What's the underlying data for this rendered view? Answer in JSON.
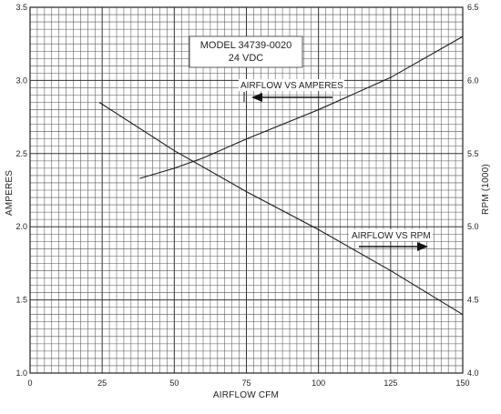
{
  "chart_data": {
    "type": "line",
    "title": "",
    "model_box": [
      "MODEL 34739-0020",
      "24   VDC"
    ],
    "xlabel": "AIRFLOW CFM",
    "ylabel_left": "AMPERES",
    "ylabel_right": "RPM (1000)",
    "x_range": [
      0,
      150
    ],
    "y_left_range": [
      1.0,
      3.5
    ],
    "y_right_range": [
      4.0,
      6.5
    ],
    "x_ticks": [
      "0",
      "25",
      "50",
      "75",
      "100",
      "125",
      "150"
    ],
    "y_left_ticks": [
      "1.0",
      "1.5",
      "2.0",
      "2.5",
      "3.0",
      "3.5"
    ],
    "y_right_ticks": [
      "4.0",
      "4.5",
      "5.0",
      "5.5",
      "6.0",
      "6.5"
    ],
    "grid": true,
    "series": [
      {
        "name": "AIRFLOW VS AMPERES",
        "axis": "left",
        "x": [
          38,
          50,
          60,
          75,
          100,
          125,
          150
        ],
        "y": [
          2.33,
          2.4,
          2.47,
          2.6,
          2.8,
          3.02,
          3.3
        ]
      },
      {
        "name": "AIRFLOW VS RPM",
        "axis": "right",
        "x": [
          24,
          50,
          75,
          100,
          125,
          150
        ],
        "y": [
          5.85,
          5.52,
          5.24,
          4.98,
          4.7,
          4.4
        ]
      }
    ],
    "annotations": [
      {
        "text": "AIRFLOW VS AMPERES",
        "arrow": "left"
      },
      {
        "text": "AIRFLOW VS RPM",
        "arrow": "right"
      }
    ]
  }
}
